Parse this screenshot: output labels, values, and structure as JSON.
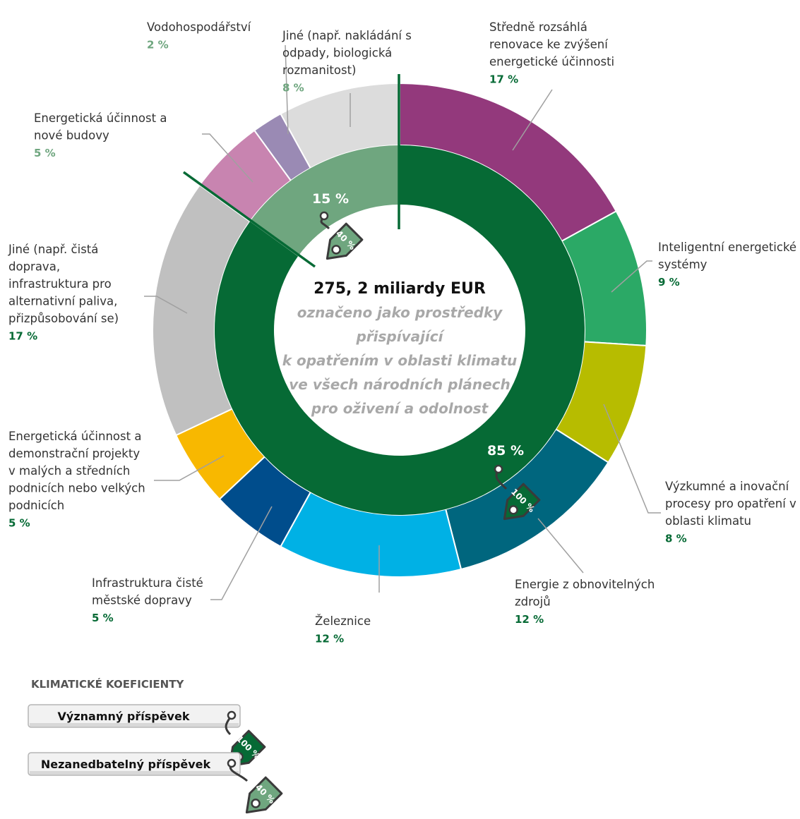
{
  "chart_data": {
    "type": "pie",
    "center_text": {
      "title": "275, 2 miliardy EUR",
      "subtitle_lines": [
        "označeno jako prostředky",
        "přispívající",
        "k opatřením v oblasti klimatu",
        "ve všech národních plánech",
        "pro oživení a odolnost"
      ]
    },
    "inner_ring": [
      {
        "name": "",
        "value": 85,
        "label": "85 %",
        "tag": "100 %",
        "color": "#066A35"
      },
      {
        "name": "",
        "value": 15,
        "label": "15 %",
        "tag": "40 %",
        "color": "#6FA67F"
      }
    ],
    "outer_ring": [
      {
        "label_lines": [
          "Středně rozsáhlá",
          "renovace ke zvýšení",
          "energetické účinnosti"
        ],
        "value": 17,
        "value_text": "17 %",
        "color": "#93397C",
        "group": "85 %"
      },
      {
        "label_lines": [
          "Inteligentní energetické",
          "systémy"
        ],
        "value": 9,
        "value_text": "9 %",
        "color": "#2BA966",
        "group": "85 %"
      },
      {
        "label_lines": [
          "Výzkumné a inovační",
          "procesy pro opatření v",
          "oblasti klimatu"
        ],
        "value": 8,
        "value_text": "8 %",
        "color": "#B7BC00",
        "group": "85 %"
      },
      {
        "label_lines": [
          "Energie z obnovitelných",
          "zdrojů"
        ],
        "value": 12,
        "value_text": "12 %",
        "color": "#00667E",
        "group": "85 %"
      },
      {
        "label_lines": [
          "Železnice"
        ],
        "value": 12,
        "value_text": "12 %",
        "color": "#00B1E5",
        "group": "85 %"
      },
      {
        "label_lines": [
          "Infrastruktura čisté",
          "městské dopravy"
        ],
        "value": 5,
        "value_text": "5 %",
        "color": "#004D8C",
        "group": "85 %"
      },
      {
        "label_lines": [
          "Energetická účinnost a",
          "demonstrační projekty",
          "v malých a středních",
          "podnicích nebo velkých",
          "podnicích"
        ],
        "value": 5,
        "value_text": "5 %",
        "color": "#F8B800",
        "group": "85 %"
      },
      {
        "label_lines": [
          "Jiné (např. čistá",
          "doprava,",
          "infrastruktura pro",
          "alternativní paliva,",
          "přizpůsobování se)"
        ],
        "value": 17,
        "value_text": "17 %",
        "color": "#C0C0C0",
        "group": "85 %"
      },
      {
        "label_lines": [
          "Energetická účinnost a",
          "nové budovy"
        ],
        "value": 5,
        "value_text": "5 %",
        "color": "#C884B0",
        "group": "15 %"
      },
      {
        "label_lines": [
          "Vodohospodářství"
        ],
        "value": 2,
        "value_text": "2 %",
        "color": "#9A8AB4",
        "group": "15 %"
      },
      {
        "label_lines": [
          "Jiné (např. nakládání s",
          "odpady, biologická",
          "rozmanitost)"
        ],
        "value": 8,
        "value_text": "8 %",
        "color": "#DCDCDC",
        "group": "15 %"
      }
    ],
    "legend": {
      "title": "KLIMATICKÉ KOEFICIENTY",
      "items": [
        {
          "label": "Významný příspěvek",
          "tag": "100 %",
          "color": "#066A35"
        },
        {
          "label": "Nezanedbatelný příspěvek",
          "tag": "40 %",
          "color": "#6FA67F"
        }
      ]
    },
    "colors": {
      "dark_green_text": "#066A35",
      "light_green_text": "#6FA67F",
      "center_subtitle": "#A8A8A8",
      "leader": "#A0A0A0"
    }
  }
}
